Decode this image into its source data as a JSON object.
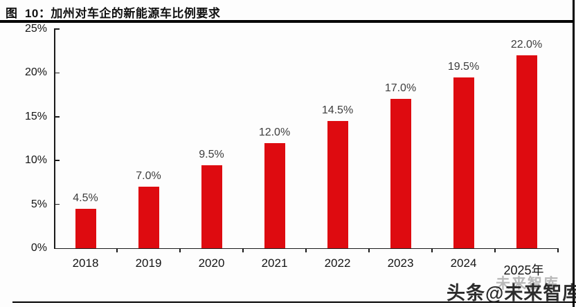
{
  "figure": {
    "title": "图  10：加州对车企的新能源车比例要求"
  },
  "chart_data": {
    "type": "bar",
    "title": "图 10：加州对车企的新能源车比例要求",
    "categories": [
      "2018",
      "2019",
      "2020",
      "2021",
      "2022",
      "2023",
      "2024",
      "2025年"
    ],
    "values": [
      4.5,
      7.0,
      9.5,
      12.0,
      14.5,
      17.0,
      19.5,
      22.0
    ],
    "bar_labels": [
      "4.5%",
      "7.0%",
      "9.5%",
      "12.0%",
      "14.5%",
      "17.0%",
      "19.5%",
      "22.0%"
    ],
    "xlabel": "",
    "ylabel": "",
    "y_tick_labels": [
      "0%",
      "5%",
      "10%",
      "15%",
      "20%",
      "25%"
    ],
    "ylim": [
      0,
      25
    ],
    "y_tick_step": 5,
    "grid": false,
    "legend_position": "none",
    "bar_color": "#de0b10",
    "data_label_color": "#3d3d3d"
  },
  "watermark": {
    "main": "头条@未来智库",
    "ghost": "未来智库"
  }
}
